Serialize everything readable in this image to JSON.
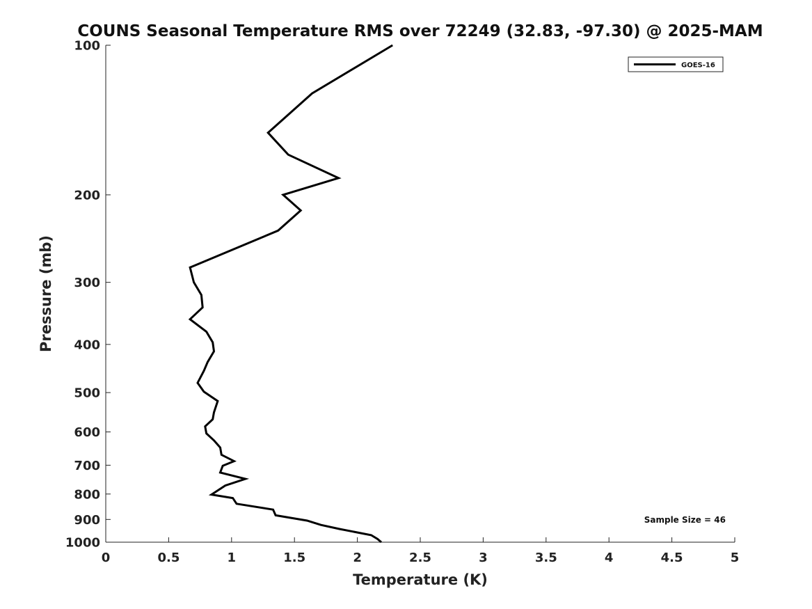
{
  "chart_data": {
    "type": "line",
    "title": "COUNS Seasonal Temperature RMS over 72249 (32.83, -97.30) @ 2025-MAM",
    "xlabel": "Temperature (K)",
    "ylabel": "Pressure (mb)",
    "xlim": [
      0,
      5
    ],
    "ylim": [
      100,
      1000
    ],
    "y_scale": "log",
    "y_inverted": true,
    "grid": false,
    "legend_position": "top-right",
    "x_ticks": [
      "0",
      "0.5",
      "1",
      "1.5",
      "2",
      "2.5",
      "3",
      "3.5",
      "4",
      "4.5",
      "5"
    ],
    "y_ticks": [
      "100",
      "200",
      "300",
      "400",
      "500",
      "600",
      "700",
      "800",
      "900",
      "1000"
    ],
    "series": [
      {
        "name": "GOES-16",
        "color": "#000000",
        "points": [
          [
            2.28,
            100
          ],
          [
            1.64,
            125
          ],
          [
            1.29,
            150
          ],
          [
            1.45,
            166
          ],
          [
            1.85,
            185
          ],
          [
            1.41,
            200
          ],
          [
            1.55,
            215
          ],
          [
            1.37,
            236
          ],
          [
            0.67,
            280
          ],
          [
            0.7,
            300
          ],
          [
            0.76,
            318
          ],
          [
            0.77,
            337
          ],
          [
            0.67,
            356
          ],
          [
            0.8,
            377
          ],
          [
            0.85,
            396
          ],
          [
            0.86,
            413
          ],
          [
            0.81,
            434
          ],
          [
            0.78,
            452
          ],
          [
            0.73,
            478
          ],
          [
            0.78,
            498
          ],
          [
            0.89,
            520
          ],
          [
            0.86,
            548
          ],
          [
            0.85,
            566
          ],
          [
            0.79,
            585
          ],
          [
            0.8,
            604
          ],
          [
            0.86,
            624
          ],
          [
            0.91,
            645
          ],
          [
            0.92,
            667
          ],
          [
            1.02,
            687
          ],
          [
            0.93,
            702
          ],
          [
            0.91,
            724
          ],
          [
            1.11,
            746
          ],
          [
            0.95,
            769
          ],
          [
            0.84,
            802
          ],
          [
            1.01,
            815
          ],
          [
            1.04,
            837
          ],
          [
            1.33,
            860
          ],
          [
            1.35,
            883
          ],
          [
            1.6,
            905
          ],
          [
            1.71,
            923
          ],
          [
            1.86,
            941
          ],
          [
            2.11,
            968
          ],
          [
            2.16,
            985
          ],
          [
            2.19,
            1000
          ]
        ]
      }
    ],
    "annotation": "Sample Size = 46"
  }
}
